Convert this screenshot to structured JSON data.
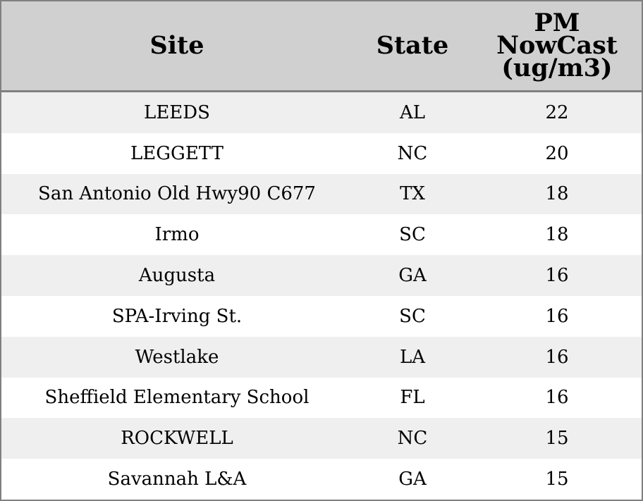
{
  "chart_data": {
    "type": "table",
    "columns": [
      "Site",
      "State",
      "PM\nNowCast\n(ug/m3)"
    ],
    "rows": [
      {
        "site": "LEEDS",
        "state": "AL",
        "pm": 22
      },
      {
        "site": "LEGGETT",
        "state": "NC",
        "pm": 20
      },
      {
        "site": "San Antonio Old Hwy90 C677",
        "state": "TX",
        "pm": 18
      },
      {
        "site": "Irmo",
        "state": "SC",
        "pm": 18
      },
      {
        "site": "Augusta",
        "state": "GA",
        "pm": 16
      },
      {
        "site": "SPA-Irving St.",
        "state": "SC",
        "pm": 16
      },
      {
        "site": "Westlake",
        "state": "LA",
        "pm": 16
      },
      {
        "site": "Sheffield Elementary School",
        "state": "FL",
        "pm": 16
      },
      {
        "site": "ROCKWELL",
        "state": "NC",
        "pm": 15
      },
      {
        "site": "Savannah L&A",
        "state": "GA",
        "pm": 15
      }
    ],
    "colors": {
      "header_bg": "#d0d0d0",
      "stripe_bg": "#efefef",
      "border": "#808080"
    }
  }
}
